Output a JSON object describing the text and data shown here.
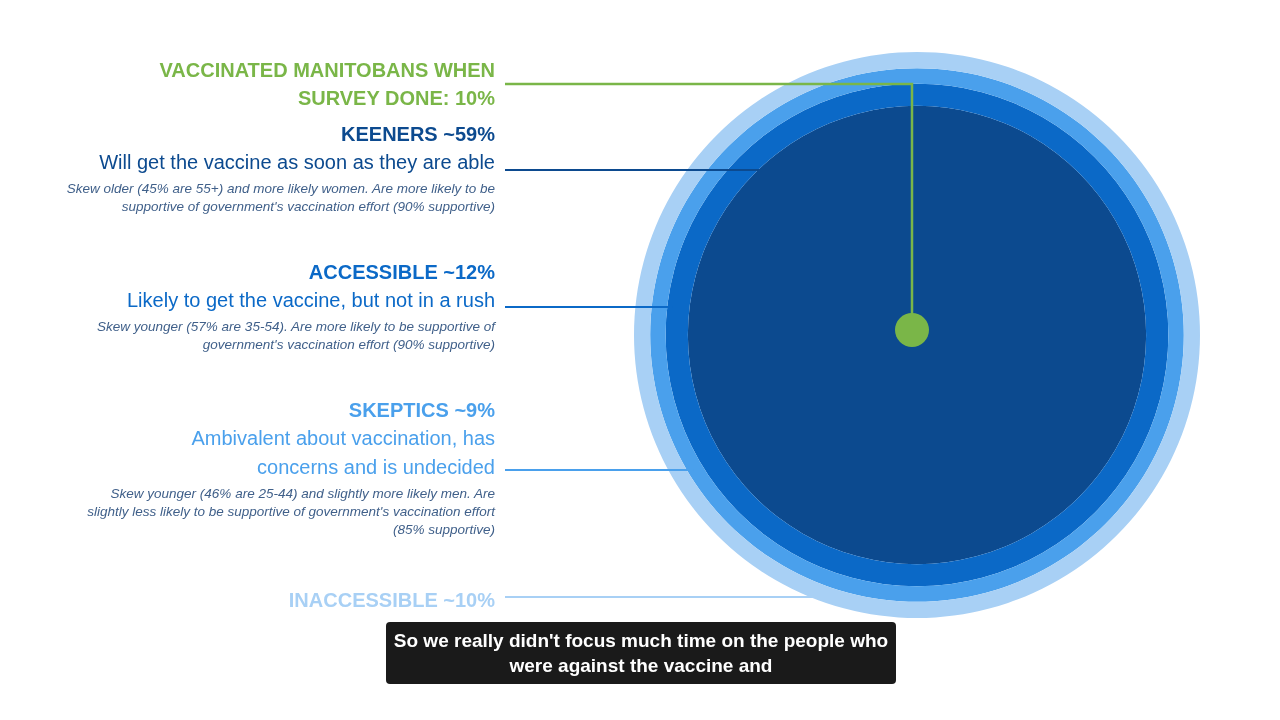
{
  "chart_data": {
    "type": "other",
    "categories": [
      "KEENERS",
      "ACCESSIBLE",
      "SKEPTICS",
      "INACCESSIBLE"
    ],
    "values": [
      59,
      12,
      9,
      10
    ],
    "value_labels": [
      "~59%",
      "~12%",
      "~9%",
      "~10%"
    ],
    "colors": [
      "#0c4a8f",
      "#0b69c7",
      "#4aa0ec",
      "#a8d0f5"
    ],
    "annotations": [
      "VACCINATED MANITOBANS WHEN SURVEY DONE: 10%",
      "Will get the vaccine as soon as they are able",
      "Skew older (45% are 55+) and more likely women. Are more likely to be supportive of  government's vaccination effort (90% supportive)",
      "Likely to get the vaccine, but not in a rush",
      "Skew younger (57% are 35-54). Are more likely to be supportive of  government's vaccination effort (90% supportive)",
      "Ambivalent about vaccination, has concerns and is undecided",
      "Skew younger (46% are 25-44) and slightly more likely men. Are slightly less likely to be supportive of government's vaccination effort (85% supportive)",
      "So we really didn't focus much time on the people who were against the vaccine and"
    ]
  }
}
